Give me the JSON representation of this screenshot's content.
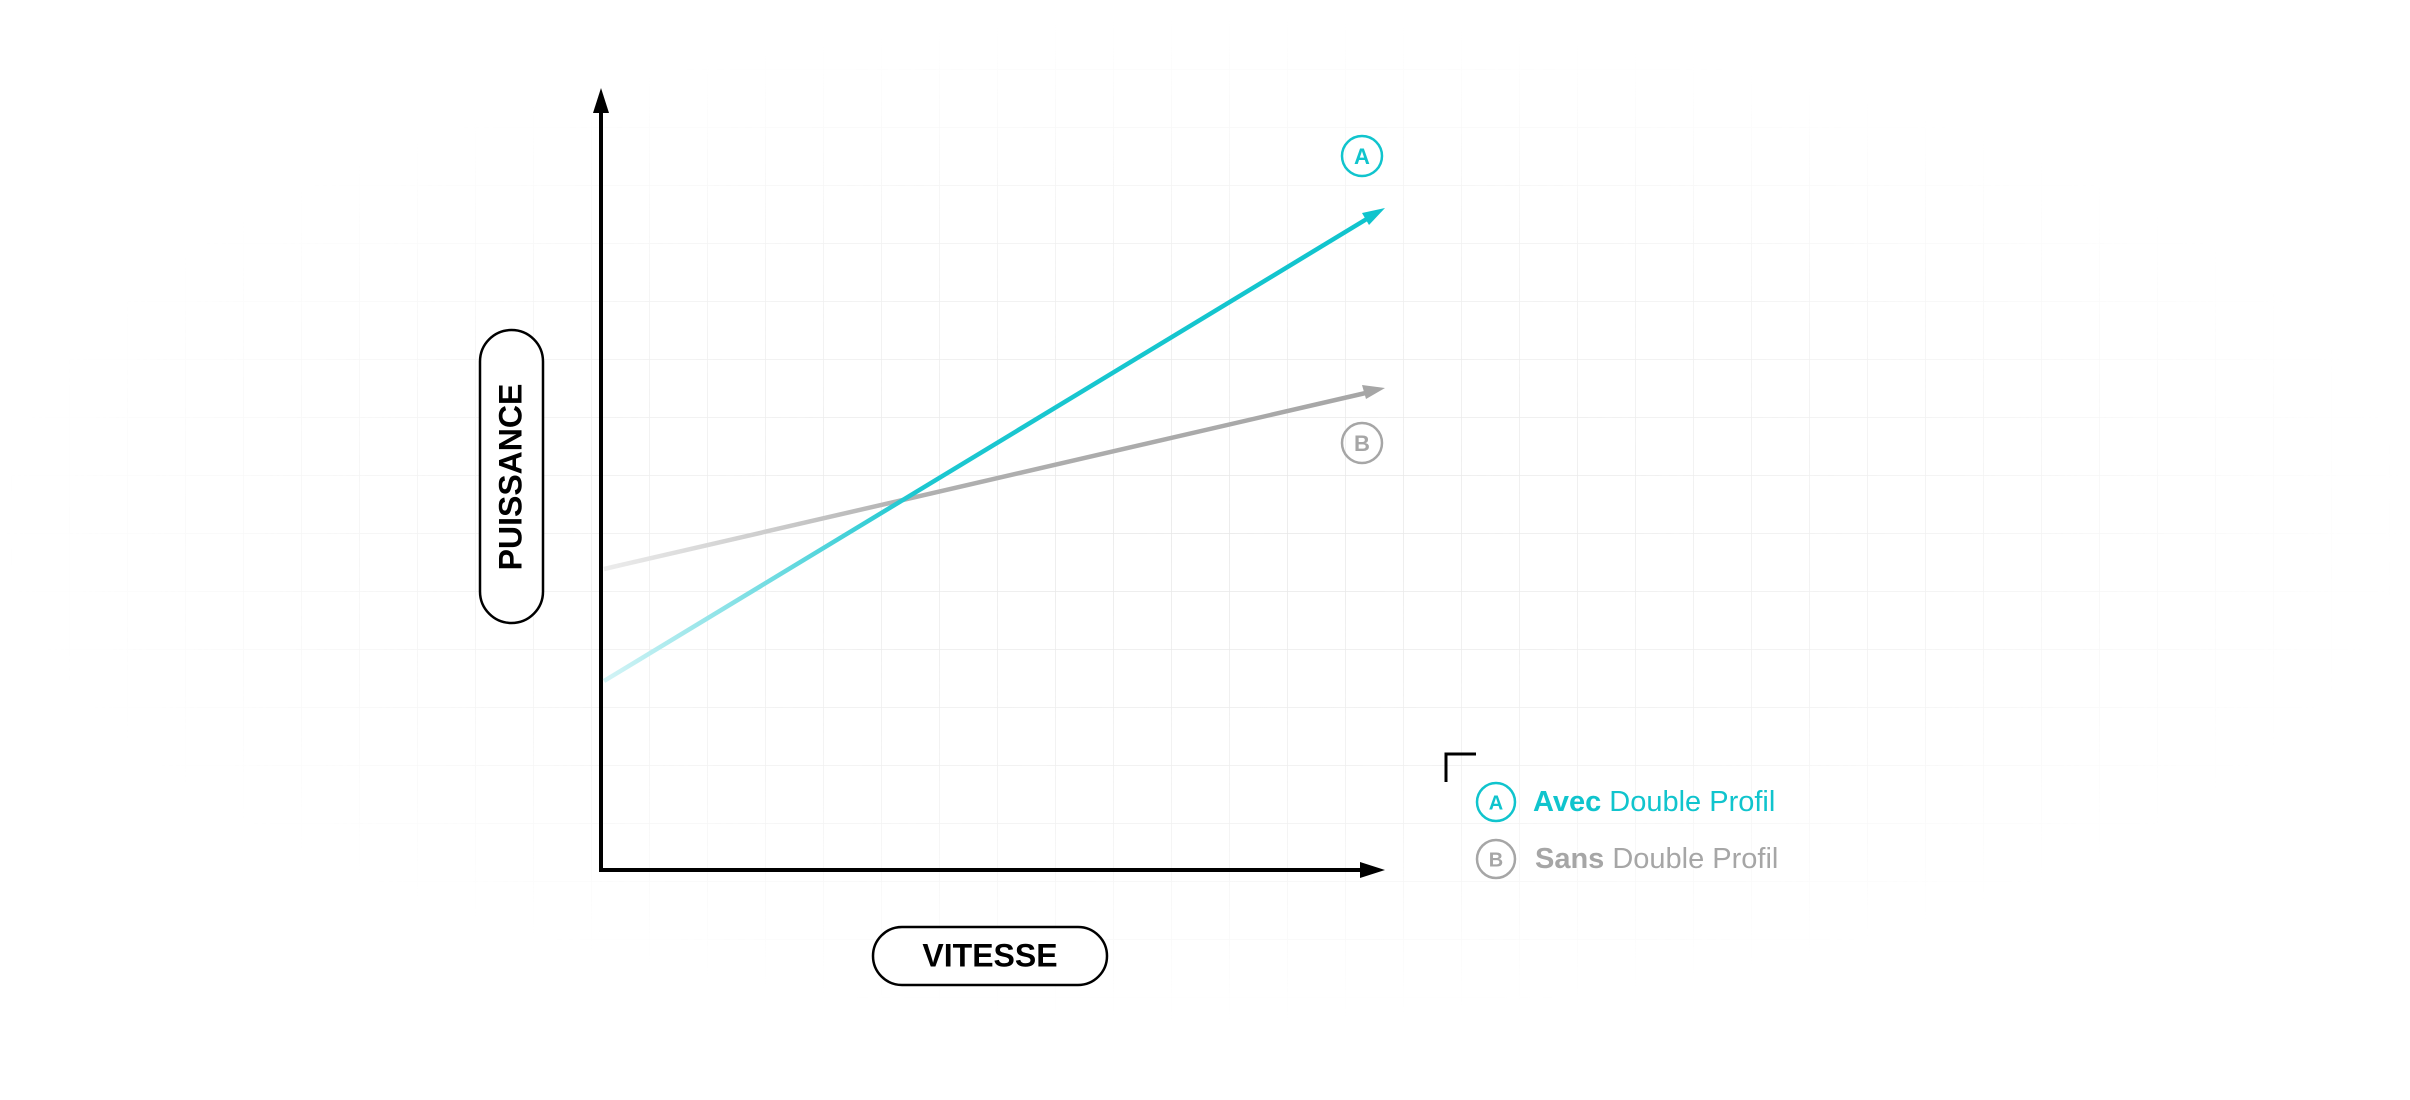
{
  "axes": {
    "y_label": "PUISSANCE",
    "x_label": "VITESSE"
  },
  "series": [
    {
      "marker": "A"
    },
    {
      "marker": "B"
    }
  ],
  "legend": [
    {
      "marker": "A",
      "bold": "Avec",
      "text": "Double Profil"
    },
    {
      "marker": "B",
      "bold": "Sans",
      "text": "Double Profil"
    }
  ]
}
